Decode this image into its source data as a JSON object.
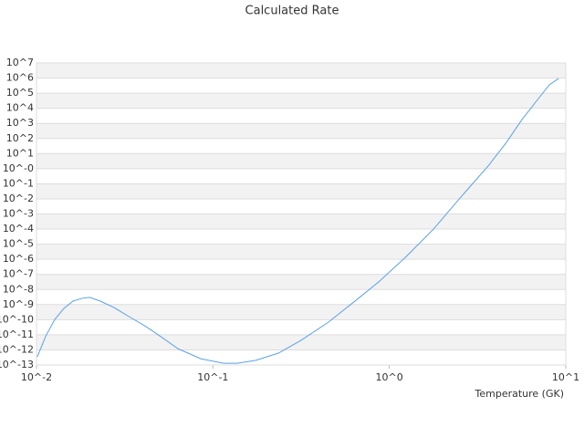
{
  "chart_data": {
    "type": "line",
    "title": "Calculated Rate",
    "x_label": "Temperature (GK)",
    "xlog": true,
    "ylog": true,
    "grid": true,
    "color": "#5aa0e8",
    "xlim": [
      0.01,
      10
    ],
    "ylim": [
      1e-13,
      10000000
    ],
    "xticks": [
      {
        "value": 0.01,
        "label": "10^-2"
      },
      {
        "value": 0.1,
        "label": "10^-1"
      },
      {
        "value": 1,
        "label": "10^0"
      },
      {
        "value": 10,
        "label": "10^1"
      }
    ],
    "yticks": [
      {
        "value": 10000000,
        "label": "10^7"
      },
      {
        "value": 1000000,
        "label": "10^6"
      },
      {
        "value": 100000,
        "label": "10^5"
      },
      {
        "value": 10000,
        "label": "10^4"
      },
      {
        "value": 1000,
        "label": "10^3"
      },
      {
        "value": 100,
        "label": "10^2"
      },
      {
        "value": 10,
        "label": "10^1"
      },
      {
        "value": 1,
        "label": "10^-0"
      },
      {
        "value": 0.1,
        "label": "10^-1"
      },
      {
        "value": 0.01,
        "label": "10^-2"
      },
      {
        "value": 0.001,
        "label": "10^-3"
      },
      {
        "value": 0.0001,
        "label": "10^-4"
      },
      {
        "value": 1e-05,
        "label": "10^-5"
      },
      {
        "value": 1e-06,
        "label": "10^-6"
      },
      {
        "value": 1e-07,
        "label": "10^-7"
      },
      {
        "value": 1e-08,
        "label": "10^-8"
      },
      {
        "value": 1e-09,
        "label": "10^-9"
      },
      {
        "value": 1e-10,
        "label": "10^-10"
      },
      {
        "value": 1e-11,
        "label": "10^-11"
      },
      {
        "value": 1e-12,
        "label": "10^-12"
      },
      {
        "value": 1e-13,
        "label": "10^-13"
      }
    ],
    "x": [
      0.0101,
      0.0113,
      0.0127,
      0.0143,
      0.0161,
      0.0181,
      0.02,
      0.023,
      0.0275,
      0.0329,
      0.0418,
      0.0499,
      0.0634,
      0.0853,
      0.115,
      0.137,
      0.174,
      0.235,
      0.316,
      0.452,
      0.646,
      0.871,
      1.245,
      1.78,
      2.54,
      3.63,
      4.61,
      5.65,
      7.0,
      8.07,
      9.1
    ],
    "values": [
      3.5e-13,
      8.5e-12,
      1.05e-10,
      5.6e-10,
      1.7e-09,
      2.6e-09,
      3e-09,
      1.7e-09,
      6.4e-10,
      1.8e-10,
      3.5e-11,
      8.5e-12,
      1.2e-12,
      2.6e-13,
      1.3e-13,
      1.3e-13,
      2e-13,
      6.1e-13,
      4.3e-12,
      6.9e-11,
      1.9e-09,
      3.2e-08,
      1.5e-06,
      0.0001,
      0.013,
      1.5,
      55,
      1800,
      44000,
      355000,
      930000
    ]
  }
}
